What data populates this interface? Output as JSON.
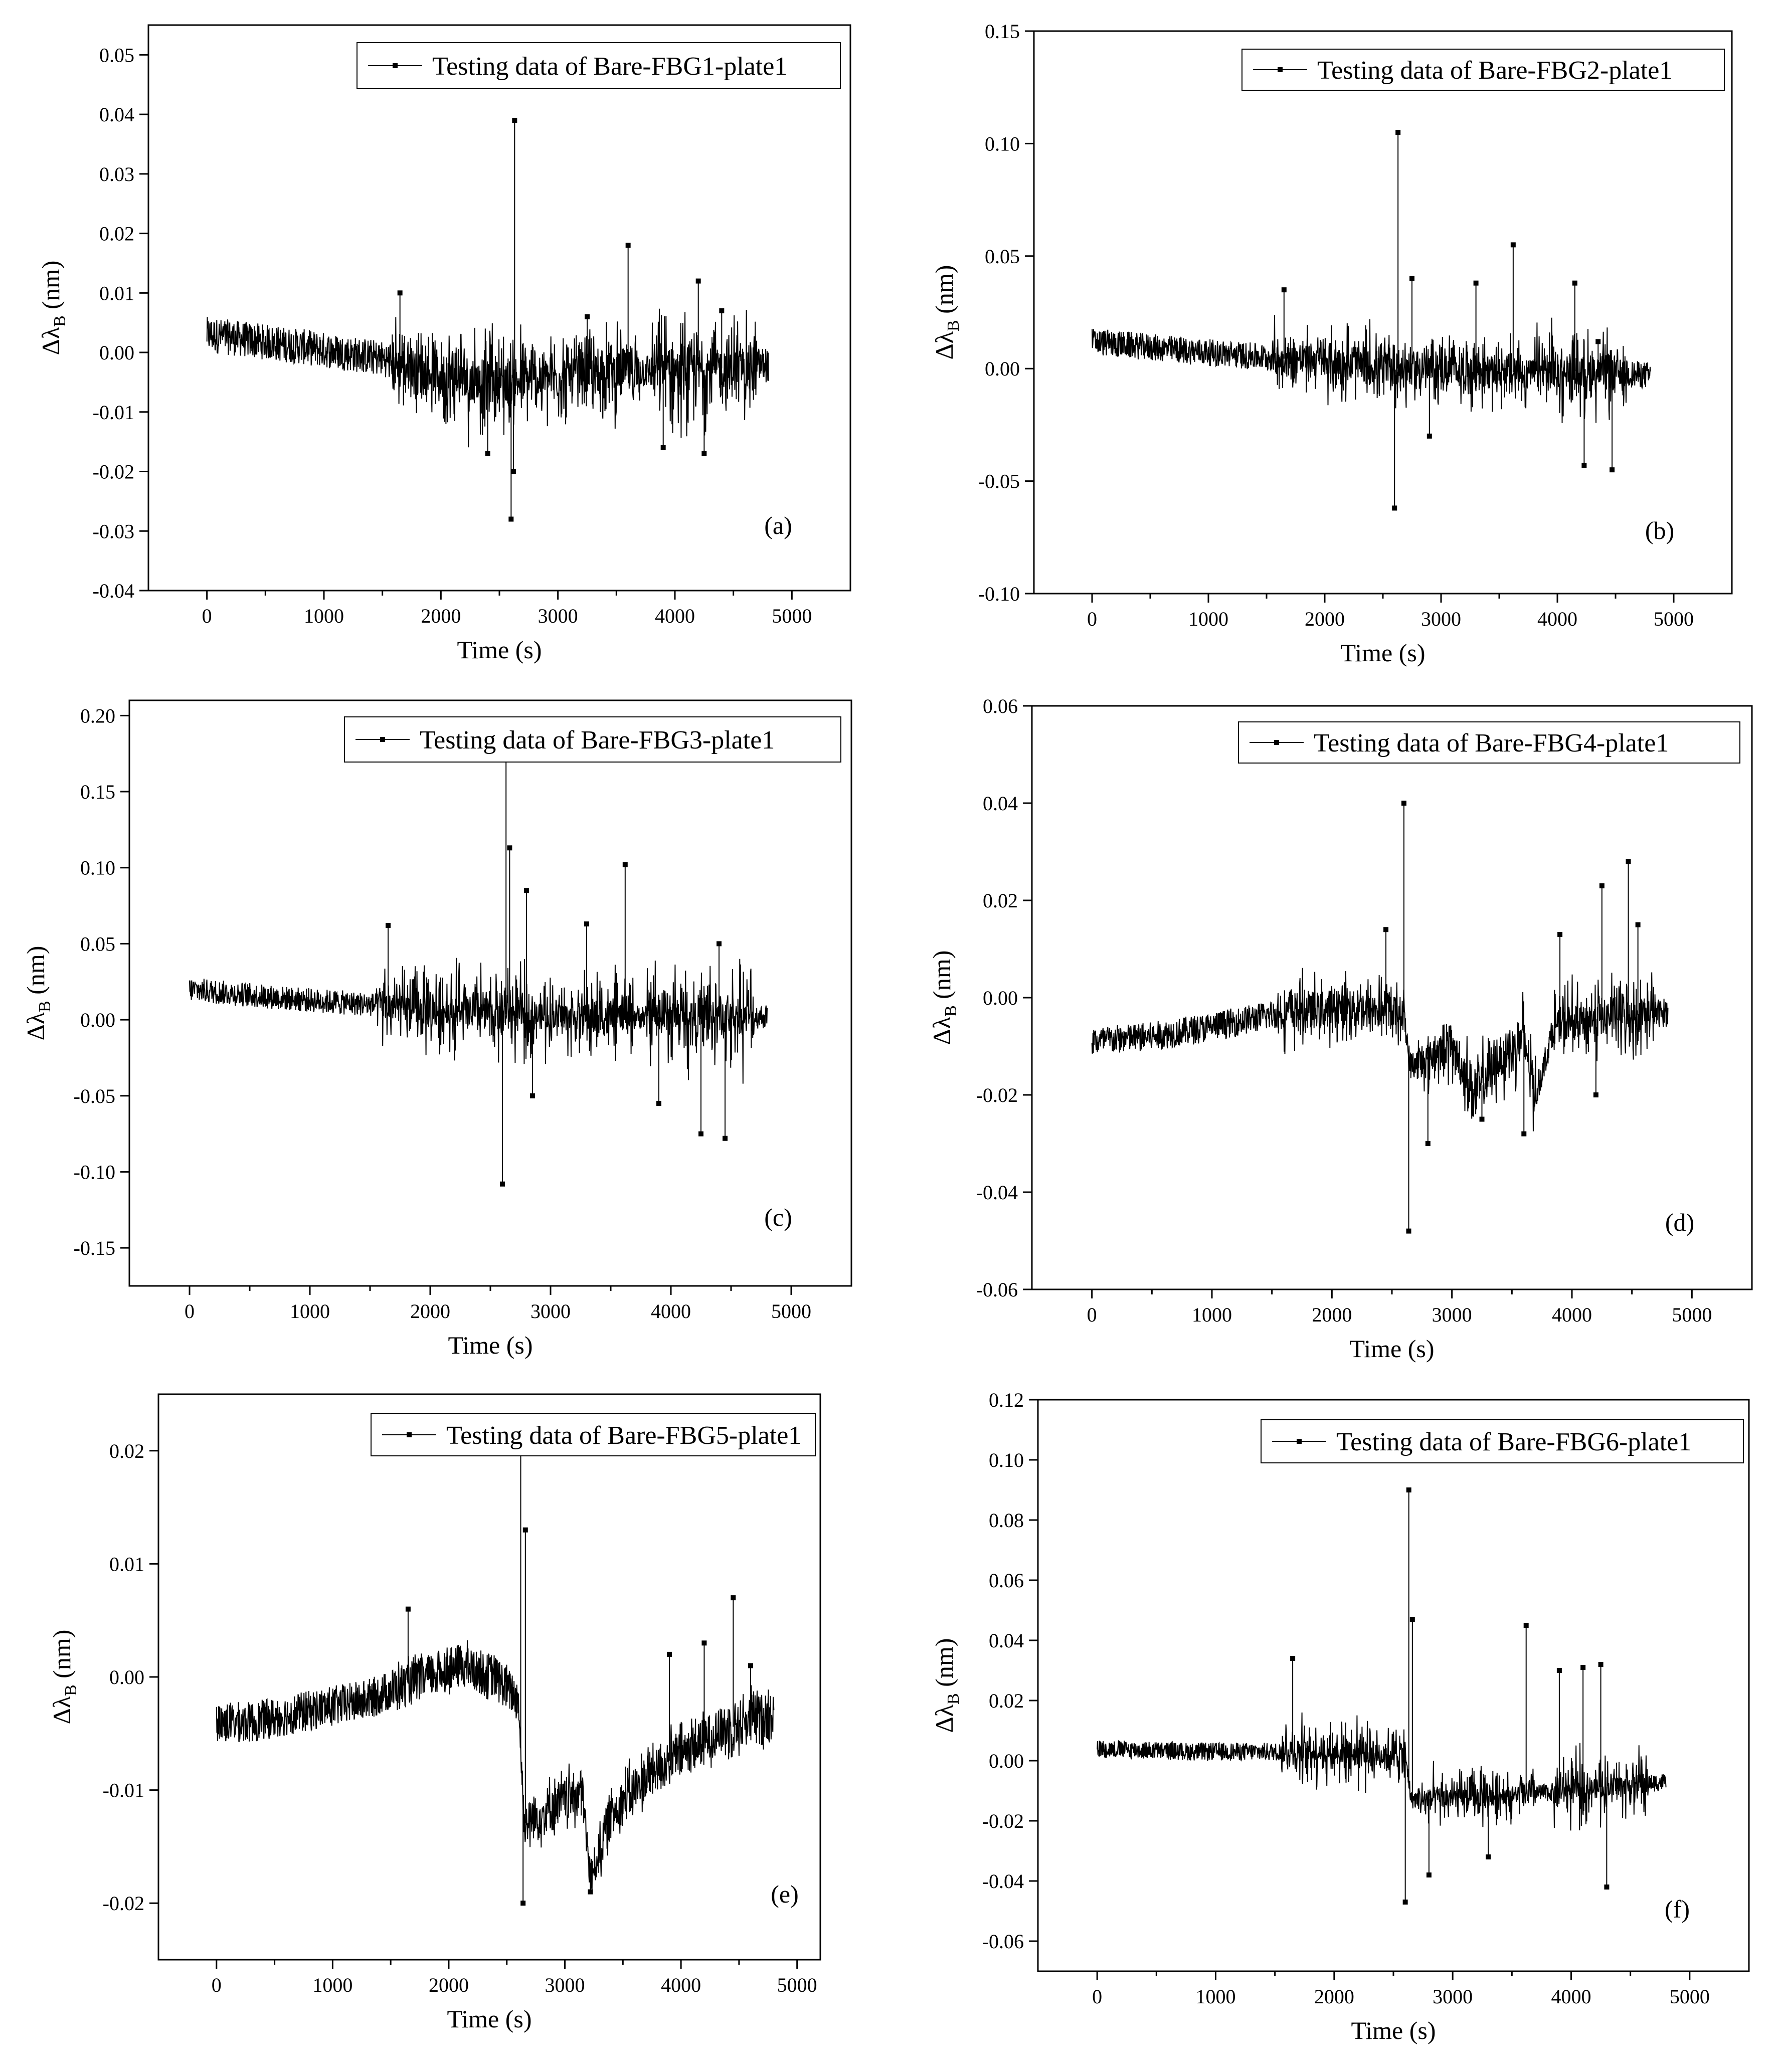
{
  "figure": {
    "x_axis_label": "Time (s)",
    "y_axis_label_prefix": "Δλ",
    "y_axis_label_subscript": "B",
    "y_axis_label_suffix": " (nm)"
  },
  "chart_data": [
    {
      "type": "line",
      "panel_label": "(a)",
      "series": [
        {
          "name": "Testing data of Bare-FBG1-plate1"
        }
      ],
      "xlabel": "Time (s)",
      "ylabel": "Δλ_B (nm)",
      "xlim": [
        -500,
        5500
      ],
      "ylim": [
        -0.04,
        0.055
      ],
      "xticks": [
        0,
        1000,
        2000,
        3000,
        4000,
        5000
      ],
      "yticks": [
        -0.04,
        -0.03,
        -0.02,
        -0.01,
        0.0,
        0.01,
        0.02,
        0.03,
        0.04,
        0.05
      ],
      "y_decimals": 2,
      "legend_position": "top-right",
      "baseline": [
        [
          0,
          0.003
        ],
        [
          800,
          0.001
        ],
        [
          1500,
          -0.001
        ],
        [
          2000,
          -0.004
        ],
        [
          2600,
          -0.005
        ],
        [
          3100,
          -0.004
        ],
        [
          3600,
          -0.003
        ],
        [
          4200,
          -0.003
        ],
        [
          4800,
          -0.002
        ]
      ],
      "band_width": 0.003,
      "noise_segments": [
        [
          1550,
          2000,
          0.006
        ],
        [
          2000,
          2700,
          0.009
        ],
        [
          2700,
          3500,
          0.007
        ],
        [
          3500,
          3700,
          0.006
        ],
        [
          3800,
          4700,
          0.009
        ]
      ],
      "spikes": [
        [
          1650,
          0.01
        ],
        [
          2600,
          -0.028
        ],
        [
          2630,
          0.039
        ],
        [
          2620,
          -0.02
        ],
        [
          2400,
          -0.017
        ],
        [
          3250,
          0.006
        ],
        [
          3600,
          0.018
        ],
        [
          4200,
          0.012
        ],
        [
          4250,
          -0.017
        ],
        [
          4400,
          0.007
        ],
        [
          3900,
          -0.016
        ]
      ],
      "x": [
        0,
        4800
      ]
    },
    {
      "type": "line",
      "panel_label": "(b)",
      "series": [
        {
          "name": "Testing data of Bare-FBG2-plate1"
        }
      ],
      "xlabel": "Time (s)",
      "ylabel": "Δλ_B (nm)",
      "xlim": [
        -500,
        5500
      ],
      "ylim": [
        -0.1,
        0.15
      ],
      "xticks": [
        0,
        1000,
        2000,
        3000,
        4000,
        5000
      ],
      "yticks": [
        -0.1,
        -0.05,
        0.0,
        0.05,
        0.1,
        0.15
      ],
      "y_decimals": 2,
      "legend_position": "top-right",
      "baseline": [
        [
          0,
          0.012
        ],
        [
          800,
          0.008
        ],
        [
          1500,
          0.005
        ],
        [
          2000,
          0.003
        ],
        [
          2600,
          0.0
        ],
        [
          3200,
          0.0
        ],
        [
          3700,
          -0.002
        ],
        [
          4200,
          -0.001
        ],
        [
          4800,
          -0.003
        ]
      ],
      "band_width": 0.006,
      "noise_segments": [
        [
          1550,
          2100,
          0.015
        ],
        [
          2100,
          2700,
          0.018
        ],
        [
          2700,
          3500,
          0.015
        ],
        [
          3500,
          3750,
          0.018
        ],
        [
          3800,
          4600,
          0.02
        ]
      ],
      "spikes": [
        [
          1650,
          0.035
        ],
        [
          2600,
          -0.062
        ],
        [
          2630,
          0.105
        ],
        [
          2750,
          0.04
        ],
        [
          2900,
          -0.03
        ],
        [
          3300,
          0.038
        ],
        [
          3620,
          0.055
        ],
        [
          4150,
          0.038
        ],
        [
          4230,
          -0.043
        ],
        [
          4470,
          -0.045
        ],
        [
          4350,
          0.012
        ]
      ],
      "x": [
        0,
        4800
      ]
    },
    {
      "type": "line",
      "panel_label": "(c)",
      "series": [
        {
          "name": "Testing data of Bare-FBG3-plate1"
        }
      ],
      "xlabel": "Time (s)",
      "ylabel": "Δλ_B (nm)",
      "xlim": [
        -500,
        5500
      ],
      "ylim": [
        -0.175,
        0.21
      ],
      "xticks": [
        0,
        1000,
        2000,
        3000,
        4000,
        5000
      ],
      "yticks": [
        -0.15,
        -0.1,
        -0.05,
        0.0,
        0.05,
        0.1,
        0.15,
        0.2
      ],
      "y_decimals": 2,
      "legend_position": "top-right",
      "baseline": [
        [
          0,
          0.02
        ],
        [
          800,
          0.014
        ],
        [
          1500,
          0.01
        ],
        [
          2000,
          0.006
        ],
        [
          2600,
          0.004
        ],
        [
          3200,
          0.002
        ],
        [
          3700,
          0.002
        ],
        [
          4200,
          0.002
        ],
        [
          4800,
          0.002
        ]
      ],
      "band_width": 0.008,
      "noise_segments": [
        [
          1550,
          2100,
          0.03
        ],
        [
          2100,
          2700,
          0.035
        ],
        [
          2700,
          3450,
          0.03
        ],
        [
          3450,
          3700,
          0.03
        ],
        [
          3800,
          4700,
          0.04
        ]
      ],
      "spikes": [
        [
          1650,
          0.062
        ],
        [
          2600,
          -0.108
        ],
        [
          2630,
          0.185
        ],
        [
          2660,
          0.113
        ],
        [
          2800,
          0.085
        ],
        [
          2850,
          -0.05
        ],
        [
          3300,
          0.063
        ],
        [
          3620,
          0.102
        ],
        [
          3900,
          -0.055
        ],
        [
          4250,
          -0.075
        ],
        [
          4450,
          -0.078
        ],
        [
          4400,
          0.05
        ]
      ],
      "x": [
        0,
        4800
      ]
    },
    {
      "type": "line",
      "panel_label": "(d)",
      "series": [
        {
          "name": "Testing data of Bare-FBG4-plate1"
        }
      ],
      "xlabel": "Time (s)",
      "ylabel": "Δλ_B (nm)",
      "xlim": [
        -500,
        5500
      ],
      "ylim": [
        -0.06,
        0.06
      ],
      "xticks": [
        0,
        1000,
        2000,
        3000,
        4000,
        5000
      ],
      "yticks": [
        -0.06,
        -0.04,
        -0.02,
        0.0,
        0.02,
        0.04,
        0.06
      ],
      "y_decimals": 2,
      "legend_position": "top-right",
      "baseline": [
        [
          0,
          -0.009
        ],
        [
          500,
          -0.008
        ],
        [
          1000,
          -0.006
        ],
        [
          1600,
          -0.003
        ],
        [
          2100,
          -0.002
        ],
        [
          2600,
          -0.003
        ],
        [
          2650,
          -0.014
        ],
        [
          3000,
          -0.01
        ],
        [
          3200,
          -0.02
        ],
        [
          3350,
          -0.014
        ],
        [
          3600,
          -0.008
        ],
        [
          3700,
          -0.02
        ],
        [
          3850,
          -0.006
        ],
        [
          4300,
          -0.004
        ],
        [
          4800,
          -0.003
        ]
      ],
      "band_width": 0.003,
      "noise_segments": [
        [
          1550,
          2600,
          0.006
        ],
        [
          2700,
          3100,
          0.006
        ],
        [
          3100,
          3700,
          0.008
        ],
        [
          3850,
          4700,
          0.008
        ]
      ],
      "spikes": [
        [
          2600,
          0.04
        ],
        [
          2640,
          -0.048
        ],
        [
          2450,
          0.014
        ],
        [
          2800,
          -0.03
        ],
        [
          3250,
          -0.025
        ],
        [
          3600,
          -0.028
        ],
        [
          3900,
          0.013
        ],
        [
          4250,
          0.023
        ],
        [
          4470,
          0.028
        ],
        [
          4550,
          0.015
        ],
        [
          4200,
          -0.02
        ]
      ],
      "x": [
        0,
        4800
      ]
    },
    {
      "type": "line",
      "panel_label": "(e)",
      "series": [
        {
          "name": "Testing data of Bare-FBG5-plate1"
        }
      ],
      "xlabel": "Time (s)",
      "ylabel": "Δλ_B (nm)",
      "xlim": [
        -500,
        5200
      ],
      "ylim": [
        -0.025,
        0.025
      ],
      "xticks": [
        0,
        1000,
        2000,
        3000,
        4000,
        5000
      ],
      "yticks": [
        -0.02,
        -0.01,
        0.0,
        0.01,
        0.02
      ],
      "y_decimals": 2,
      "legend_position": "top-right",
      "baseline": [
        [
          0,
          -0.004
        ],
        [
          300,
          -0.004
        ],
        [
          800,
          -0.003
        ],
        [
          1300,
          -0.002
        ],
        [
          1800,
          0.0
        ],
        [
          2100,
          0.001
        ],
        [
          2400,
          0.0
        ],
        [
          2600,
          -0.002
        ],
        [
          2650,
          -0.013
        ],
        [
          3150,
          -0.01
        ],
        [
          3220,
          -0.018
        ],
        [
          3400,
          -0.012
        ],
        [
          3800,
          -0.008
        ],
        [
          4300,
          -0.005
        ],
        [
          4800,
          -0.003
        ]
      ],
      "band_width": 0.0018,
      "noise_segments": [
        [
          1500,
          2600,
          0.0008
        ],
        [
          2700,
          3150,
          0.0015
        ],
        [
          3300,
          4800,
          0.0015
        ]
      ],
      "spikes": [
        [
          1650,
          0.006
        ],
        [
          2620,
          0.02
        ],
        [
          2640,
          -0.02
        ],
        [
          2660,
          0.013
        ],
        [
          3220,
          -0.019
        ],
        [
          3900,
          0.002
        ],
        [
          4200,
          0.003
        ],
        [
          4450,
          0.007
        ],
        [
          4600,
          0.001
        ]
      ],
      "x": [
        0,
        4800
      ]
    },
    {
      "type": "line",
      "panel_label": "(f)",
      "series": [
        {
          "name": "Testing data of Bare-FBG6-plate1"
        }
      ],
      "xlabel": "Time (s)",
      "ylabel": "Δλ_B (nm)",
      "xlim": [
        -500,
        5500
      ],
      "ylim": [
        -0.07,
        0.12
      ],
      "xticks": [
        0,
        1000,
        2000,
        3000,
        4000,
        5000
      ],
      "yticks": [
        -0.06,
        -0.04,
        -0.02,
        0.0,
        0.02,
        0.04,
        0.06,
        0.08,
        0.1,
        0.12
      ],
      "y_decimals": 2,
      "legend_position": "top-right",
      "baseline": [
        [
          0,
          0.004
        ],
        [
          800,
          0.003
        ],
        [
          1500,
          0.003
        ],
        [
          2000,
          0.003
        ],
        [
          2600,
          0.002
        ],
        [
          2650,
          -0.013
        ],
        [
          3200,
          -0.012
        ],
        [
          3700,
          -0.011
        ],
        [
          4200,
          -0.009
        ],
        [
          4800,
          -0.007
        ]
      ],
      "band_width": 0.003,
      "noise_segments": [
        [
          1550,
          2600,
          0.012
        ],
        [
          2700,
          3500,
          0.01
        ],
        [
          3550,
          3700,
          0.012
        ],
        [
          3850,
          4650,
          0.013
        ]
      ],
      "spikes": [
        [
          1650,
          0.034
        ],
        [
          2600,
          -0.047
        ],
        [
          2630,
          0.09
        ],
        [
          2660,
          0.047
        ],
        [
          2800,
          -0.038
        ],
        [
          3620,
          0.045
        ],
        [
          3900,
          0.03
        ],
        [
          4100,
          0.031
        ],
        [
          4250,
          0.032
        ],
        [
          4300,
          -0.042
        ],
        [
          3300,
          -0.032
        ]
      ],
      "x": [
        0,
        4800
      ]
    }
  ]
}
